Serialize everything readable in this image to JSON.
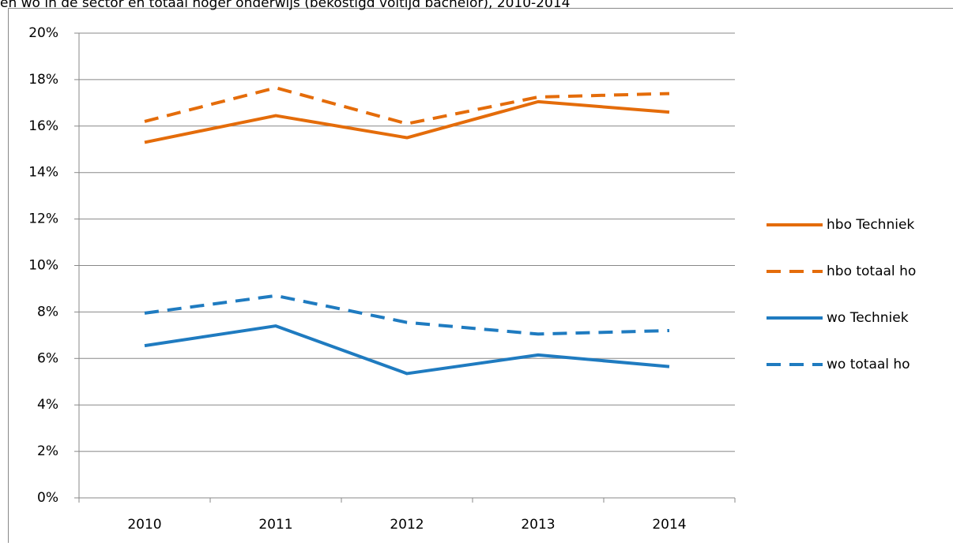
{
  "chart_data": {
    "type": "line",
    "title": "en wo in de sector en totaal hoger onderwijs (bekostigd voltijd bachelor), 2010-2014",
    "categories": [
      "2010",
      "2011",
      "2012",
      "2013",
      "2014"
    ],
    "series": [
      {
        "name": "hbo Techniek",
        "color": "#e46c0a",
        "dashed": false,
        "values": [
          15.3,
          16.45,
          15.5,
          17.05,
          16.6
        ]
      },
      {
        "name": "hbo totaal ho",
        "color": "#e46c0a",
        "dashed": true,
        "values": [
          16.2,
          17.65,
          16.1,
          17.25,
          17.4
        ]
      },
      {
        "name": "wo Techniek",
        "color": "#1f7bc0",
        "dashed": false,
        "values": [
          6.55,
          7.4,
          5.35,
          6.15,
          5.65
        ]
      },
      {
        "name": "wo totaal ho",
        "color": "#1f7bc0",
        "dashed": true,
        "values": [
          7.95,
          8.7,
          7.55,
          7.05,
          7.2
        ]
      }
    ],
    "ylim": [
      0,
      20
    ],
    "yticks": [
      {
        "value": 0,
        "label": "0%"
      },
      {
        "value": 2,
        "label": "2%"
      },
      {
        "value": 4,
        "label": "4%"
      },
      {
        "value": 6,
        "label": "6%"
      },
      {
        "value": 8,
        "label": "8%"
      },
      {
        "value": 10,
        "label": "10%"
      },
      {
        "value": 12,
        "label": "12%"
      },
      {
        "value": 14,
        "label": "14%"
      },
      {
        "value": 16,
        "label": "16%"
      },
      {
        "value": 18,
        "label": "18%"
      },
      {
        "value": 20,
        "label": "20%"
      }
    ],
    "grid": true,
    "legend": "right"
  }
}
